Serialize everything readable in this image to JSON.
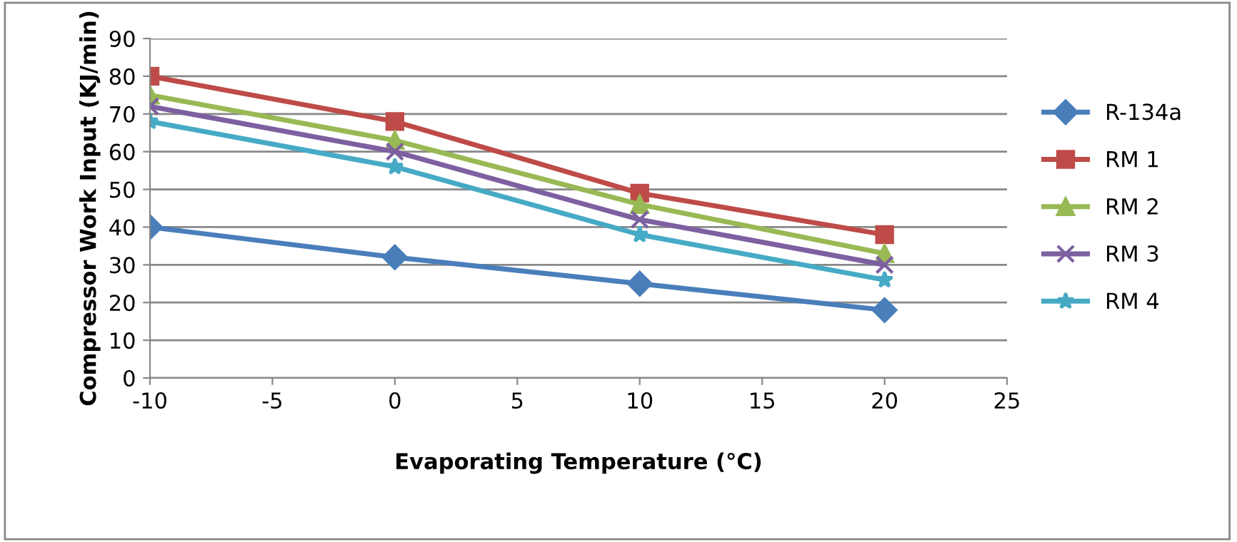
{
  "chart_data": {
    "type": "line",
    "xlabel": "Evaporating Temperature (°C)",
    "ylabel": "Compressor Work Input (KJ/min)",
    "x": [
      -10,
      0,
      10,
      20
    ],
    "series": [
      {
        "name": "R-134a",
        "color": "#4a7ebb",
        "marker": "diamond",
        "values": [
          40,
          32,
          25,
          18
        ]
      },
      {
        "name": "RM 1",
        "color": "#be4b48",
        "marker": "square",
        "values": [
          80,
          68,
          49,
          38
        ]
      },
      {
        "name": "RM 2",
        "color": "#98b954",
        "marker": "triangle",
        "values": [
          75,
          63,
          46,
          33
        ]
      },
      {
        "name": "RM 3",
        "color": "#7d60a0",
        "marker": "cross",
        "values": [
          72,
          60,
          42,
          30
        ]
      },
      {
        "name": "RM 4",
        "color": "#46aac5",
        "marker": "star",
        "values": [
          68,
          56,
          38,
          26
        ]
      }
    ],
    "xlim": [
      -10,
      25
    ],
    "xticks": [
      -10,
      -5,
      0,
      5,
      10,
      15,
      20,
      25
    ],
    "ylim": [
      0,
      90
    ],
    "yticks": [
      0,
      10,
      20,
      30,
      40,
      50,
      60,
      70,
      80,
      90
    ],
    "grid": "y",
    "legend": "right",
    "line_style": "solid"
  }
}
